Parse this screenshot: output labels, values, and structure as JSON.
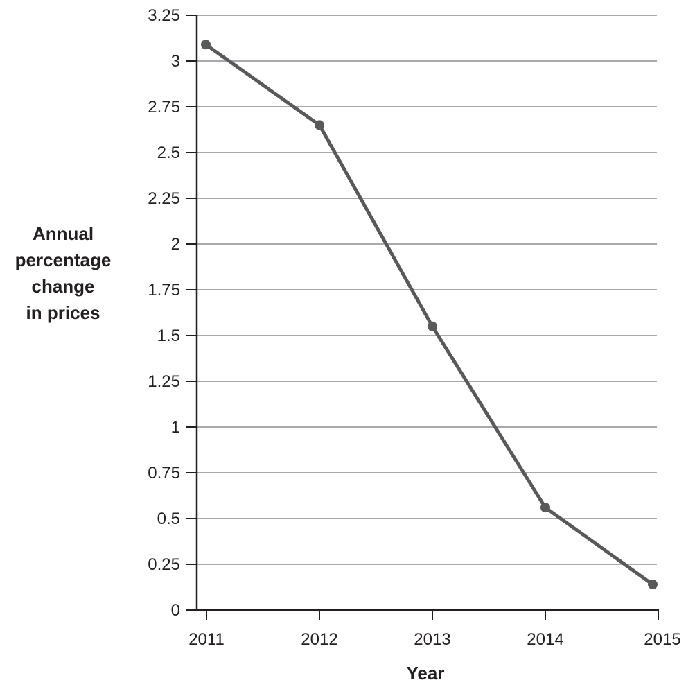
{
  "chart_data": {
    "type": "line",
    "x": [
      "2011",
      "2012",
      "2013",
      "2014",
      "2015"
    ],
    "series": [
      {
        "values": [
          3.09,
          2.65,
          1.55,
          0.56,
          0.14
        ]
      }
    ],
    "title": "",
    "xlabel": "Year",
    "ylabel_lines": [
      "Annual",
      "percentage",
      "change",
      "in prices"
    ],
    "ylim": [
      0,
      3.25
    ],
    "yticks": [
      "0",
      "0.25",
      "0.5",
      "0.75",
      "1",
      "1.25",
      "1.5",
      "1.75",
      "2",
      "2.25",
      "2.5",
      "2.75",
      "3",
      "3.25"
    ],
    "grid": "horizontal",
    "legend": "none",
    "colors": {
      "line": "#58595b",
      "grid": "#a7a9ac",
      "axis": "#231f20",
      "text": "#231f20"
    }
  }
}
